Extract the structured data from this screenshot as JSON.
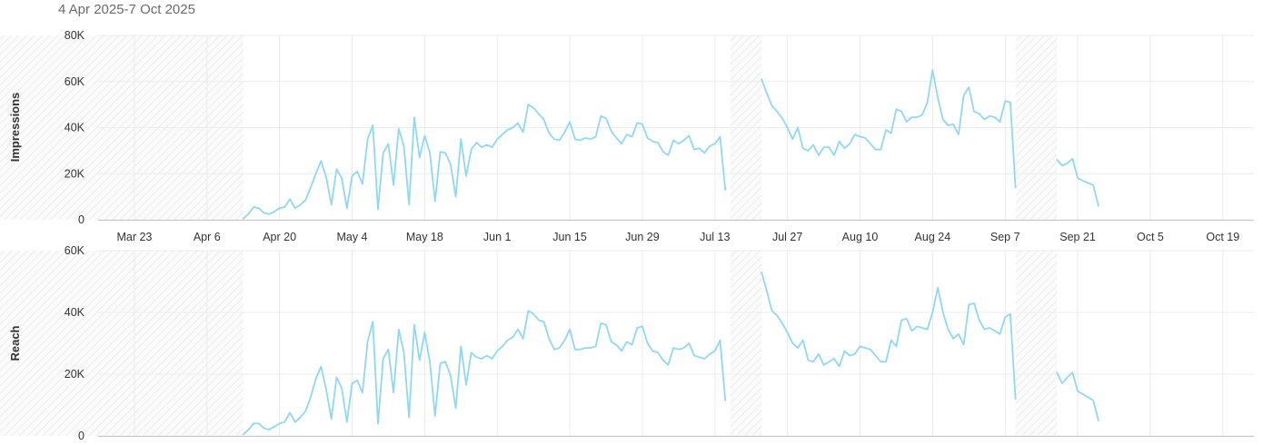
{
  "header": {
    "date_range": "4 Apr 2025-7 Oct 2025"
  },
  "colors": {
    "series": "#8fd8f5",
    "grid": "#ececec",
    "axis": "#c8c8c8",
    "hatch": "#e9e9e9"
  },
  "chart_data": [
    {
      "type": "line",
      "ylabel": "Impressions",
      "ylim": [
        0,
        80000
      ],
      "yticks": [
        "0",
        "20K",
        "40K",
        "60K",
        "80K"
      ],
      "yticks_values": [
        0,
        20000,
        40000,
        60000,
        80000
      ],
      "xlim": [
        "2025-03-16",
        "2025-10-25"
      ],
      "xticks": [
        "Mar 23",
        "Apr 6",
        "Apr 20",
        "May 4",
        "May 18",
        "Jun 1",
        "Jun 15",
        "Jun 29",
        "Jul 13",
        "Jul 27",
        "Aug 10",
        "Aug 24",
        "Sep 7",
        "Sep 21",
        "Oct 5",
        "Oct 19"
      ],
      "xticks_dates": [
        "2025-03-23",
        "2025-04-06",
        "2025-04-20",
        "2025-05-04",
        "2025-05-18",
        "2025-06-01",
        "2025-06-15",
        "2025-06-29",
        "2025-07-13",
        "2025-07-27",
        "2025-08-10",
        "2025-08-24",
        "2025-09-07",
        "2025-09-21",
        "2025-10-05",
        "2025-10-19"
      ],
      "grid": true,
      "no_data_periods": [
        [
          "2025-03-16",
          "2025-04-13"
        ],
        [
          "2025-07-16",
          "2025-07-22"
        ],
        [
          "2025-09-09",
          "2025-09-17"
        ]
      ],
      "series": [
        {
          "segments": [
            {
              "start": "2025-04-13",
              "values": [
                500,
                2500,
                5500,
                5000,
                3000,
                2500,
                3500,
                5000,
                5500,
                9000,
                5000,
                6500,
                8500,
                14000,
                20000,
                25500,
                18500,
                6500,
                22000,
                18000,
                5000,
                19000,
                21000,
                15500,
                35000,
                41000,
                4500,
                29000,
                33000,
                15000,
                39500,
                32000,
                6500,
                44500,
                27000,
                36500,
                29000,
                8000,
                29500,
                29000,
                24000,
                10000,
                35000,
                19000,
                30500,
                33500,
                31500,
                32500,
                31500,
                35000,
                37000,
                39000,
                40000,
                42000,
                38000,
                50000,
                48500,
                46000,
                43500,
                37500,
                35000,
                34500,
                38000,
                42500,
                35000,
                34500,
                35500,
                35000,
                36000,
                45000,
                44000,
                38500,
                35500,
                33000,
                37000,
                36000,
                42000,
                41500,
                35500,
                34000,
                33500,
                29500,
                28000,
                34500,
                33000,
                34500,
                36500,
                30500,
                31000,
                29000,
                32000,
                33000,
                36000,
                13000
              ]
            },
            {
              "start": "2025-07-22",
              "values": [
                61000,
                55000,
                49500,
                47000,
                44000,
                40000,
                35000,
                40000,
                31000,
                30000,
                32500,
                28000,
                31500,
                31500,
                28000,
                34000,
                31000,
                33000,
                37000,
                36000,
                35500,
                33000,
                30500,
                30500,
                39000,
                37500,
                48000,
                47000,
                42500,
                44500,
                44500,
                45500,
                51000,
                65000,
                53000,
                43500,
                41000,
                41500,
                37000,
                54000,
                57500,
                47000,
                46000,
                43500,
                45000,
                44500,
                42500,
                51500,
                51000,
                14000
              ]
            },
            {
              "start": "2025-09-17",
              "values": [
                26000,
                23500,
                24500,
                26500,
                18000,
                17000,
                16000,
                15000,
                6000
              ]
            }
          ]
        }
      ]
    },
    {
      "type": "line",
      "ylabel": "Reach",
      "ylim": [
        0,
        60000
      ],
      "yticks": [
        "0",
        "20K",
        "40K",
        "60K"
      ],
      "yticks_values": [
        0,
        20000,
        40000,
        60000
      ],
      "xlim": [
        "2025-03-16",
        "2025-10-25"
      ],
      "grid": true,
      "no_data_periods": [
        [
          "2025-03-16",
          "2025-04-13"
        ],
        [
          "2025-07-16",
          "2025-07-22"
        ],
        [
          "2025-09-09",
          "2025-09-17"
        ]
      ],
      "series": [
        {
          "segments": [
            {
              "start": "2025-04-13",
              "values": [
                500,
                2000,
                4000,
                4000,
                2500,
                2000,
                3000,
                4000,
                4500,
                7500,
                4500,
                6000,
                8000,
                12500,
                18500,
                22500,
                15000,
                5500,
                19000,
                15500,
                4500,
                17000,
                18000,
                14000,
                30500,
                37000,
                4000,
                25000,
                28000,
                14000,
                34500,
                27000,
                6000,
                36000,
                24500,
                33500,
                24000,
                6500,
                23500,
                24000,
                19500,
                9000,
                29000,
                16500,
                27000,
                25500,
                25000,
                26000,
                25000,
                27500,
                29000,
                31000,
                32000,
                34500,
                31500,
                40500,
                39500,
                37500,
                37000,
                31500,
                28000,
                28500,
                31000,
                34500,
                28000,
                28000,
                28500,
                28500,
                29000,
                36500,
                36000,
                30500,
                29500,
                27500,
                30500,
                29500,
                35000,
                35500,
                30000,
                27500,
                27000,
                24500,
                23000,
                28500,
                28000,
                28500,
                30000,
                26000,
                25500,
                25000,
                26500,
                27500,
                31000,
                11500
              ]
            },
            {
              "start": "2025-07-22",
              "values": [
                53000,
                47000,
                40500,
                39000,
                36500,
                33500,
                30000,
                28500,
                31000,
                24500,
                24000,
                26500,
                23000,
                24000,
                25000,
                22500,
                27500,
                26000,
                26500,
                29000,
                28500,
                28000,
                26000,
                24000,
                24000,
                31000,
                29000,
                37500,
                38000,
                34000,
                35500,
                35000,
                34500,
                40000,
                48000,
                40000,
                34500,
                31500,
                33000,
                29500,
                42500,
                43000,
                37500,
                34500,
                35000,
                34000,
                33000,
                38500,
                39500,
                12000
              ]
            },
            {
              "start": "2025-09-17",
              "values": [
                20500,
                17000,
                19000,
                20500,
                14500,
                13500,
                12500,
                11500,
                5000
              ]
            }
          ]
        }
      ]
    }
  ]
}
